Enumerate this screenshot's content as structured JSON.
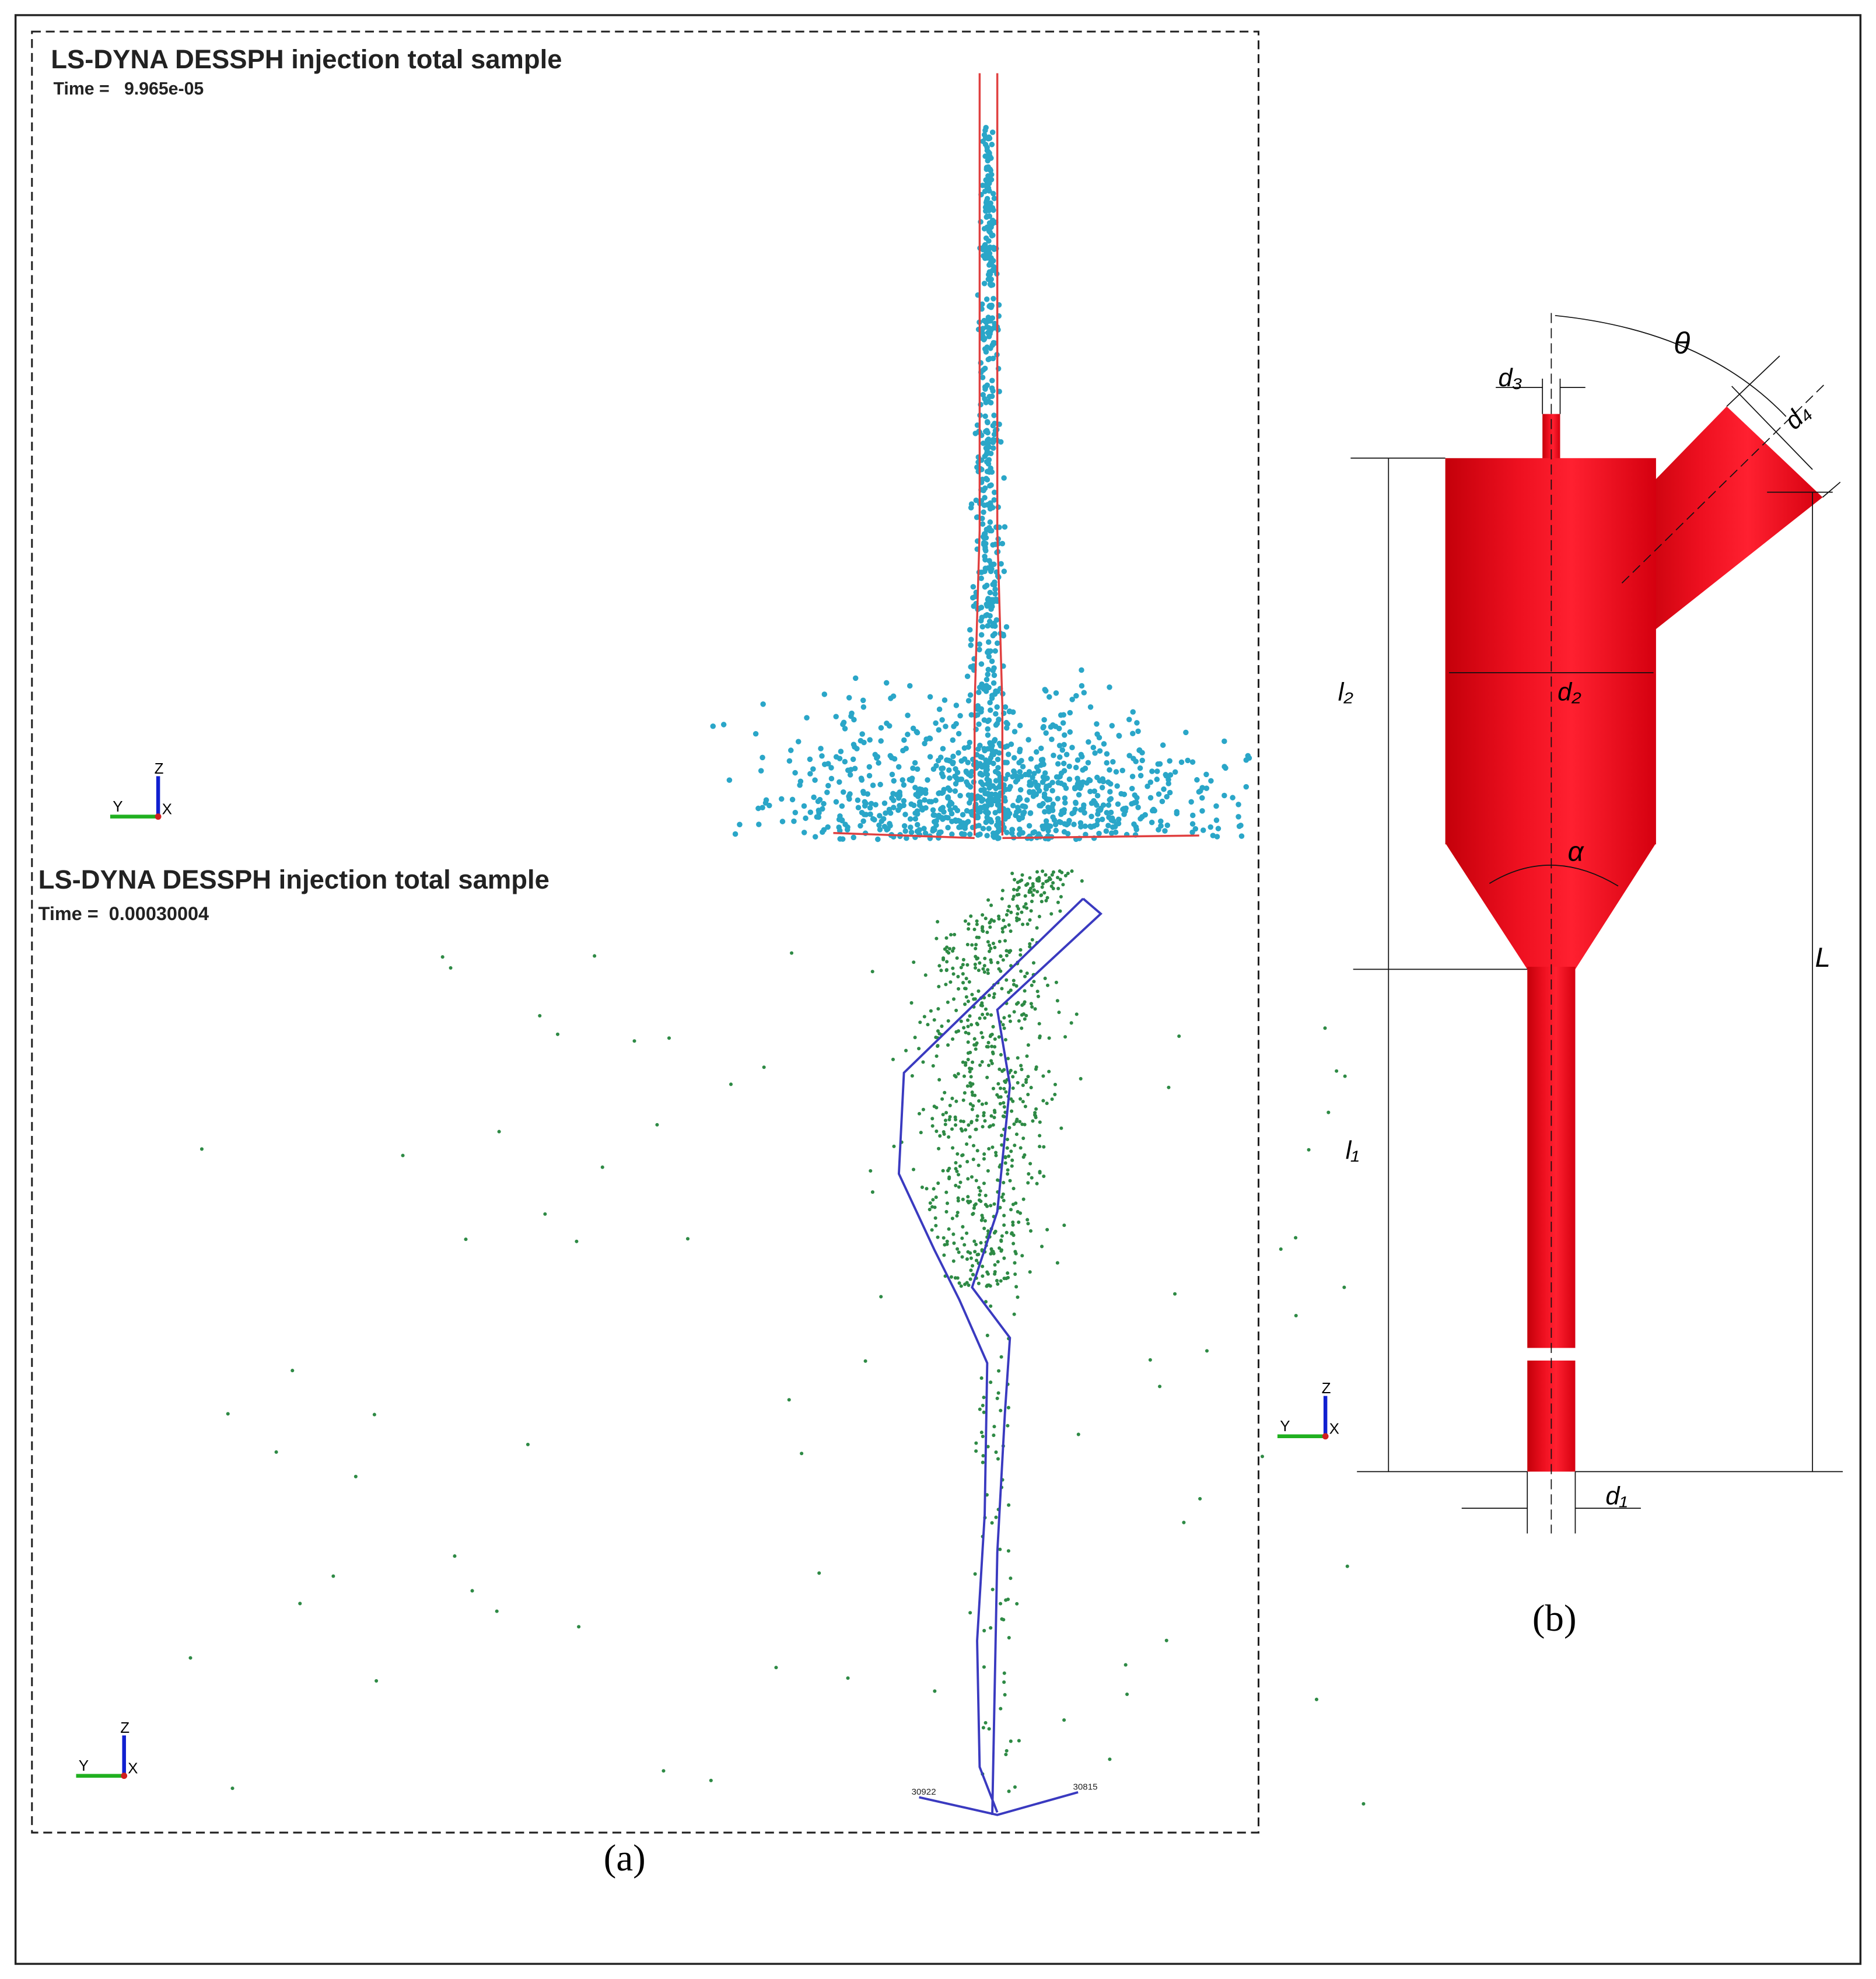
{
  "panel_a": {
    "top": {
      "title": "LS-DYNA DESSPH injection total sample",
      "time": "Time =   9.965e-05",
      "axes": {
        "z": "Z",
        "y": "Y",
        "x": "X"
      }
    },
    "bottom": {
      "title": "LS-DYNA DESSPH injection total sample",
      "time": "Time =  0.00030004",
      "node_labels": [
        "30922",
        "30815"
      ],
      "axes": {
        "z": "Z",
        "y": "Y",
        "x": "X"
      }
    },
    "caption": "(a)"
  },
  "panel_b": {
    "labels": {
      "d3": "d₃",
      "theta": "θ",
      "d4": "d₄",
      "d2": "d₂",
      "l2": "l₂",
      "alpha": "α",
      "L": "L",
      "l1": "l₁",
      "d1": "d₁"
    },
    "axes": {
      "z": "Z",
      "y": "Y",
      "x": "X"
    },
    "caption": "(b)"
  }
}
